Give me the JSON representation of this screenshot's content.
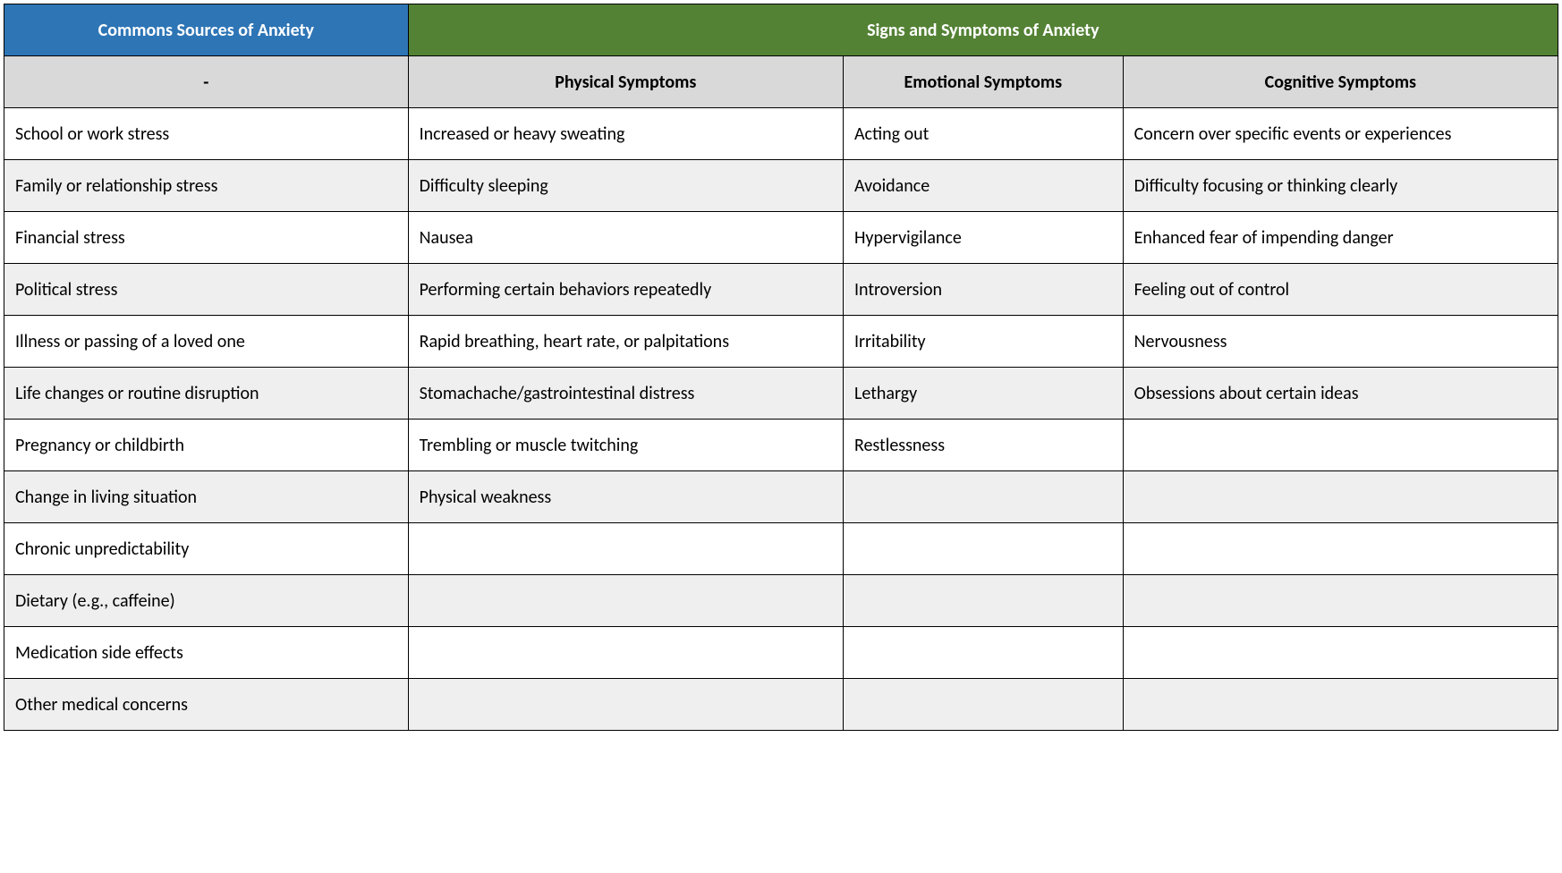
{
  "table": {
    "type": "table",
    "col_widths": [
      "26%",
      "28%",
      "18%",
      "28%"
    ],
    "colors": {
      "header_left_bg": "#2e75b6",
      "header_right_bg": "#548235",
      "header_text": "#ffffff",
      "subheader_bg": "#d9d9d9",
      "row_even_bg": "#ffffff",
      "row_odd_bg": "#efefef",
      "border": "#000000",
      "body_text": "#000000"
    },
    "fonts": {
      "header_size_pt": 15,
      "body_size_pt": 15,
      "header_weight": "bold",
      "subheader_weight": "bold"
    },
    "top_headers": {
      "left": "Commons Sources of Anxiety",
      "right": "Signs and Symptoms of Anxiety",
      "right_colspan": 3
    },
    "sub_headers": [
      "-",
      "Physical Symptoms",
      "Emotional Symptoms",
      "Cognitive Symptoms"
    ],
    "rows": [
      [
        "School or work stress",
        "Increased or heavy sweating",
        "Acting out",
        "Concern over specific events or experiences"
      ],
      [
        "Family or relationship stress",
        "Difficulty sleeping",
        "Avoidance",
        "Difficulty focusing or thinking clearly"
      ],
      [
        "Financial stress",
        "Nausea",
        "Hypervigilance",
        "Enhanced fear of impending danger"
      ],
      [
        "Political stress",
        "Performing certain behaviors repeatedly",
        "Introversion",
        "Feeling out of control"
      ],
      [
        "Illness or passing of a loved one",
        "Rapid breathing, heart rate, or palpitations",
        "Irritability",
        "Nervousness"
      ],
      [
        "Life changes or routine disruption",
        "Stomachache/gastrointestinal distress",
        "Lethargy",
        "Obsessions about certain ideas"
      ],
      [
        "Pregnancy or childbirth",
        "Trembling or muscle twitching",
        "Restlessness",
        ""
      ],
      [
        "Change in living situation",
        "Physical weakness",
        "",
        ""
      ],
      [
        "Chronic unpredictability",
        "",
        "",
        ""
      ],
      [
        "Dietary (e.g., caffeine)",
        "",
        "",
        ""
      ],
      [
        "Medication side effects",
        "",
        "",
        ""
      ],
      [
        "Other medical concerns",
        "",
        "",
        ""
      ]
    ]
  }
}
